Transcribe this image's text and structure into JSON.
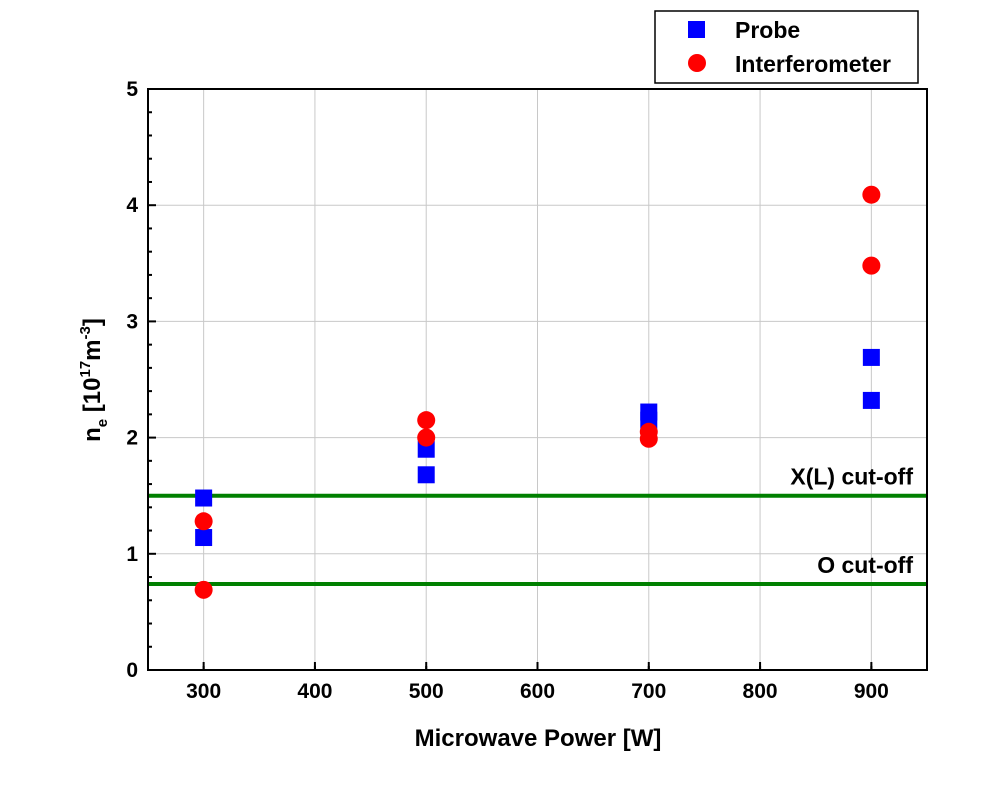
{
  "chart_data": {
    "type": "scatter",
    "xlabel": "Microwave Power [W]",
    "ylabel": {
      "base": "n",
      "sub": "e",
      "open": " [10",
      "exp1": "17",
      "mid": "m",
      "exp2": "-3",
      "close": "]"
    },
    "xlim": [
      250,
      950
    ],
    "ylim": [
      0,
      5
    ],
    "x_ticks": [
      "300",
      "400",
      "500",
      "600",
      "700",
      "800",
      "900"
    ],
    "y_ticks": [
      "0",
      "1",
      "2",
      "3",
      "4",
      "5"
    ],
    "grid": true,
    "legend_position": "top-right",
    "series": [
      {
        "name": "Probe",
        "marker": "square",
        "color": "#0000ff",
        "points": [
          [
            300,
            1.48
          ],
          [
            300,
            1.14
          ],
          [
            500,
            1.9
          ],
          [
            500,
            1.68
          ],
          [
            700,
            2.22
          ],
          [
            700,
            2.15
          ],
          [
            900,
            2.69
          ],
          [
            900,
            2.32
          ]
        ]
      },
      {
        "name": "Interferometer",
        "marker": "circle",
        "color": "#ff0000",
        "points": [
          [
            300,
            1.28
          ],
          [
            300,
            0.69
          ],
          [
            500,
            2.15
          ],
          [
            500,
            2.0
          ],
          [
            700,
            2.05
          ],
          [
            700,
            1.99
          ],
          [
            900,
            4.09
          ],
          [
            900,
            3.48
          ]
        ]
      }
    ],
    "reference_lines": [
      {
        "label": "X(L) cut-off",
        "y": 1.5,
        "color": "#008000"
      },
      {
        "label": "O cut-off",
        "y": 0.74,
        "color": "#008000"
      }
    ]
  }
}
